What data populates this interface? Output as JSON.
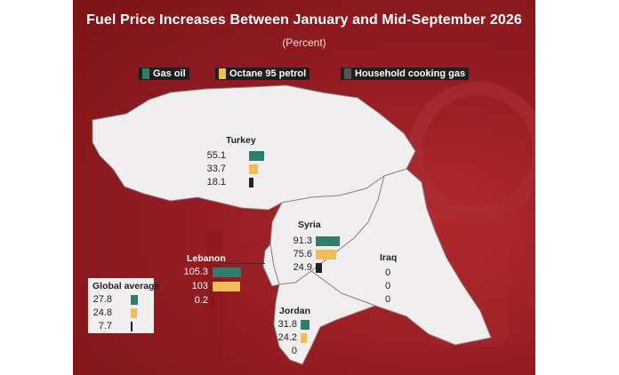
{
  "title": "Fuel Price Increases Between January and Mid-September 2026",
  "subtitle": "(Percent)",
  "legend": [
    {
      "label": "Gas oil",
      "color": "#2e7d6e"
    },
    {
      "label": "Octane 95 petrol",
      "color": "#f2bd54"
    },
    {
      "label": "Household cooking gas",
      "color": "#222222"
    }
  ],
  "colors": {
    "background": "#951d22",
    "land": "#f0eeee",
    "border": "#8a8a8a"
  },
  "chart_data": {
    "type": "bar",
    "series_names": [
      "Gas oil",
      "Octane 95 petrol",
      "Household cooking gas"
    ],
    "categories": [
      "Turkey",
      "Syria",
      "Lebanon",
      "Global average",
      "Iraq",
      "Jordan"
    ],
    "series": [
      {
        "name": "Gas oil",
        "values": [
          55.1,
          91.3,
          105.3,
          27.8,
          0,
          31.8
        ]
      },
      {
        "name": "Octane 95 petrol",
        "values": [
          33.7,
          75.6,
          103,
          24.8,
          0,
          24.2
        ]
      },
      {
        "name": "Household cooking gas",
        "values": [
          18.1,
          24.9,
          0.2,
          7.7,
          0,
          0
        ]
      }
    ]
  },
  "regions": {
    "turkey": {
      "name": "Turkey",
      "values": [
        "55.1",
        "33.7",
        "18.1"
      ]
    },
    "syria": {
      "name": "Syria",
      "values": [
        "91.3",
        "75.6",
        "24.9"
      ]
    },
    "lebanon": {
      "name": "Lebanon",
      "values": [
        "105.3",
        "103",
        "0.2"
      ]
    },
    "global": {
      "name": "Global average",
      "values": [
        "27.8",
        "24.8",
        "7.7"
      ]
    },
    "iraq": {
      "name": "Iraq",
      "values": [
        "0",
        "0",
        "0"
      ]
    },
    "jordan": {
      "name": "Jordan",
      "values": [
        "31.8",
        "24.2",
        "0"
      ]
    }
  }
}
